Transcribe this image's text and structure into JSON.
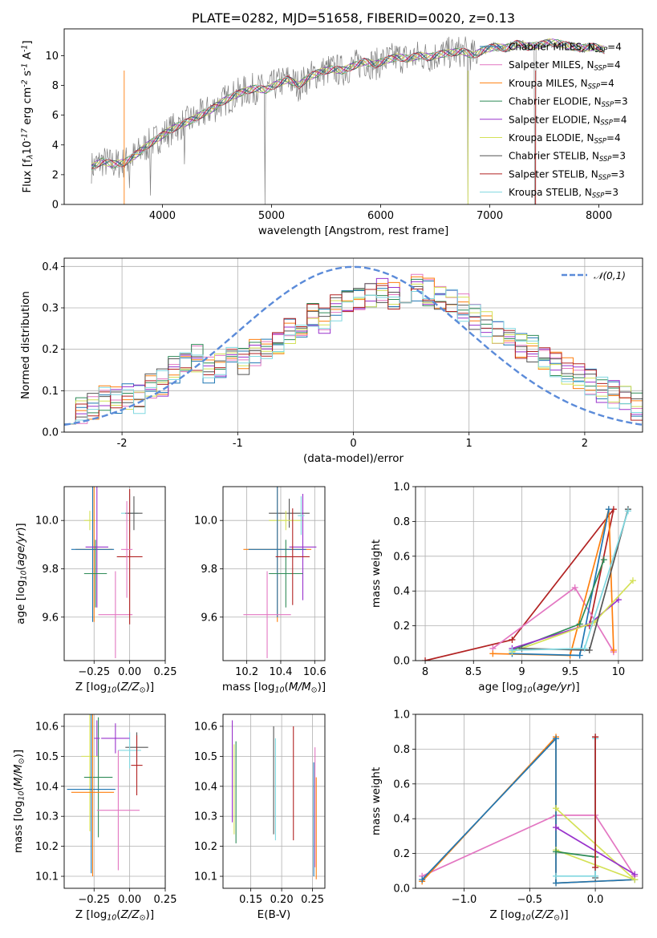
{
  "colors": {
    "Chabrier MILES": "#1f77b4",
    "Salpeter MILES": "#e377c2",
    "Kroupa MILES": "#ff7f0e",
    "Chabrier ELODIE": "#2e8b57",
    "Salpeter ELODIE": "#9932cc",
    "Kroupa ELODIE": "#d4e157",
    "Chabrier STELIB": "#555555",
    "Salpeter STELIB": "#b22222",
    "Kroupa STELIB": "#80d8e0"
  },
  "chart_data": [
    {
      "id": "spectrum",
      "type": "line",
      "title": "PLATE=0282, MJD=51658, FIBERID=0020, z=0.13",
      "xlabel": "wavelength [Angstrom, rest frame]",
      "ylabel": "Flux [f$_\\lambda$10$^{-17}$ erg cm$^{-2}$ s$^{-1}$ A$^{-1}$]",
      "xlim": [
        3100,
        8400
      ],
      "ylim": [
        0,
        11.8
      ],
      "xticks": [
        4000,
        5000,
        6000,
        7000,
        8000
      ],
      "yticks": [
        0,
        2,
        4,
        6,
        8,
        10
      ],
      "grid": false,
      "legend_position": "top-right",
      "data_spectrum_color": "#808080",
      "model_x": [
        3350,
        3450,
        3550,
        3650,
        3750,
        3850,
        3950,
        4050,
        4150,
        4250,
        4350,
        4450,
        4550,
        4650,
        4750,
        4850,
        4950,
        5050,
        5150,
        5250,
        5350,
        5450,
        5550,
        5650,
        5750,
        5850,
        5950,
        6050,
        6150,
        6250,
        6350,
        6450,
        6550,
        6650,
        6750,
        6850,
        6950,
        7050,
        7150,
        7250,
        7350,
        7450,
        7550,
        7650,
        7750,
        7850,
        7950,
        8050
      ],
      "model_y": [
        2.5,
        2.9,
        2.7,
        2.8,
        3.3,
        3.9,
        4.4,
        4.9,
        5.3,
        5.6,
        6.0,
        6.4,
        6.9,
        7.3,
        7.6,
        7.8,
        7.7,
        8.1,
        8.4,
        8.0,
        8.6,
        8.9,
        9.1,
        9.0,
        9.3,
        9.6,
        9.4,
        9.7,
        9.9,
        9.8,
        10.0,
        9.9,
        10.1,
        10.2,
        10.3,
        10.0,
        10.4,
        10.6,
        10.5,
        10.8,
        10.6,
        10.7,
        10.9,
        10.8,
        10.6,
        10.5,
        10.6,
        10.4
      ],
      "data_dips": [
        [
          3700,
          1.1
        ],
        [
          3890,
          0.6
        ],
        [
          4200,
          2.7
        ],
        [
          4940,
          0.0
        ],
        [
          6800,
          0.0
        ],
        [
          7415,
          0.0
        ]
      ],
      "series": [
        {
          "name": "Chabrier MILES, N$_{SSP}$=4"
        },
        {
          "name": "Salpeter MILES, N$_{SSP}$=4"
        },
        {
          "name": "Kroupa MILES, N$_{SSP}$=4"
        },
        {
          "name": "Chabrier ELODIE, N$_{SSP}$=3"
        },
        {
          "name": "Salpeter ELODIE, N$_{SSP}$=4"
        },
        {
          "name": "Kroupa ELODIE, N$_{SSP}$=4"
        },
        {
          "name": "Chabrier STELIB, N$_{SSP}$=3"
        },
        {
          "name": "Salpeter STELIB, N$_{SSP}$=3"
        },
        {
          "name": "Kroupa STELIB, N$_{SSP}$=3"
        }
      ]
    },
    {
      "id": "residuals",
      "type": "histogram",
      "xlabel": "(data-model)/error",
      "ylabel": "Normed distribution",
      "xlim": [
        -2.5,
        2.5
      ],
      "ylim": [
        0,
        0.42
      ],
      "xticks": [
        -2,
        -1,
        0,
        1,
        2
      ],
      "yticks": [
        0.0,
        0.1,
        0.2,
        0.3,
        0.4
      ],
      "grid": true,
      "legend": "$\\mathcal{N}(0,1)$",
      "legend_position": "top-right",
      "gaussian_color": "#5b8bd9",
      "bin_edges_start": -2.5,
      "bin_width": 0.1,
      "hist_values": [
        0.04,
        0.05,
        0.06,
        0.08,
        0.08,
        0.09,
        0.08,
        0.11,
        0.12,
        0.15,
        0.16,
        0.18,
        0.15,
        0.16,
        0.18,
        0.17,
        0.19,
        0.2,
        0.21,
        0.24,
        0.25,
        0.28,
        0.27,
        0.3,
        0.31,
        0.32,
        0.33,
        0.34,
        0.33,
        0.34,
        0.35,
        0.34,
        0.33,
        0.31,
        0.3,
        0.28,
        0.26,
        0.24,
        0.22,
        0.21,
        0.2,
        0.18,
        0.16,
        0.15,
        0.14,
        0.12,
        0.1,
        0.09,
        0.08,
        0.06
      ]
    },
    {
      "id": "age_vs_Z",
      "type": "errorbar",
      "xlabel": "Z [log$_{10}$($Z/Z_\\odot$)]",
      "ylabel": "age  [log$_{10}$($age/yr$)]",
      "xlim": [
        -0.46,
        0.25
      ],
      "ylim": [
        9.42,
        10.14
      ],
      "xticks": [
        -0.25,
        0.0,
        0.25
      ],
      "xtick_labels": [
        "−0.25",
        "0.00",
        "0.25"
      ],
      "yticks": [
        9.6,
        9.8,
        10.0
      ],
      "grid": true,
      "points": [
        {
          "x": -0.28,
          "y": 10.0,
          "xerr": 0.04,
          "yerr": 0.04,
          "c": "Kroupa ELODIE"
        },
        {
          "x": -0.25,
          "y": 9.88,
          "xerr": 0.13,
          "yerr": 0.3,
          "c": "Kroupa MILES"
        },
        {
          "x": -0.26,
          "y": 9.88,
          "xerr": 0.15,
          "yerr": 0.3,
          "c": "Chabrier MILES"
        },
        {
          "x": -0.23,
          "y": 9.89,
          "xerr": 0.08,
          "yerr": 0.25,
          "c": "Salpeter ELODIE"
        },
        {
          "x": -0.24,
          "y": 9.78,
          "xerr": 0.08,
          "yerr": 0.14,
          "c": "Chabrier ELODIE"
        },
        {
          "x": -0.1,
          "y": 9.61,
          "xerr": 0.12,
          "yerr": 0.18,
          "c": "Salpeter MILES"
        },
        {
          "x": 0.0,
          "y": 10.03,
          "xerr": 0.06,
          "yerr": 0.08,
          "c": "Kroupa STELIB"
        },
        {
          "x": 0.03,
          "y": 10.03,
          "xerr": 0.06,
          "yerr": 0.07,
          "c": "Chabrier STELIB"
        },
        {
          "x": 0.0,
          "y": 9.85,
          "xerr": 0.09,
          "yerr": 0.28,
          "c": "Salpeter STELIB"
        },
        {
          "x": -0.02,
          "y": 9.88,
          "xerr": 0.04,
          "yerr": 0.2,
          "c": "Salpeter MILES"
        }
      ]
    },
    {
      "id": "age_vs_mass",
      "type": "errorbar",
      "xlabel": "mass [log$_{10}$($M/M_\\odot$)]",
      "ylabel": "",
      "xlim": [
        10.06,
        10.66
      ],
      "ylim": [
        9.42,
        10.14
      ],
      "xticks": [
        10.2,
        10.4,
        10.6
      ],
      "yticks": [
        9.6,
        9.8,
        10.0
      ],
      "grid": true,
      "points": [
        {
          "x": 10.45,
          "y": 10.03,
          "xerr": 0.12,
          "yerr": 0.06,
          "c": "Chabrier STELIB"
        },
        {
          "x": 10.43,
          "y": 10.0,
          "xerr": 0.1,
          "yerr": 0.04,
          "c": "Kroupa ELODIE"
        },
        {
          "x": 10.38,
          "y": 9.88,
          "xerr": 0.2,
          "yerr": 0.3,
          "c": "Kroupa MILES"
        },
        {
          "x": 10.38,
          "y": 9.88,
          "xerr": 0.17,
          "yerr": 0.28,
          "c": "Chabrier MILES"
        },
        {
          "x": 10.53,
          "y": 9.89,
          "xerr": 0.08,
          "yerr": 0.22,
          "c": "Salpeter ELODIE"
        },
        {
          "x": 10.43,
          "y": 9.78,
          "xerr": 0.1,
          "yerr": 0.14,
          "c": "Chabrier ELODIE"
        },
        {
          "x": 10.47,
          "y": 9.85,
          "xerr": 0.1,
          "yerr": 0.2,
          "c": "Salpeter STELIB"
        },
        {
          "x": 10.32,
          "y": 9.61,
          "xerr": 0.14,
          "yerr": 0.18,
          "c": "Salpeter MILES"
        },
        {
          "x": 10.52,
          "y": 10.02,
          "xerr": 0.02,
          "yerr": 0.08,
          "c": "Kroupa STELIB"
        }
      ]
    },
    {
      "id": "weight_vs_age",
      "type": "line",
      "xlabel": "age  [log$_{10}$($age/yr$)]",
      "ylabel": "mass weight",
      "xlim": [
        7.9,
        10.25
      ],
      "ylim": [
        0,
        1.0
      ],
      "xticks": [
        8.0,
        8.5,
        9.0,
        9.5,
        10.0
      ],
      "yticks": [
        0.0,
        0.2,
        0.4,
        0.6,
        0.8,
        1.0
      ],
      "grid": true,
      "series": [
        {
          "c": "Salpeter STELIB",
          "x": [
            8.0,
            8.9,
            9.95,
            9.7
          ],
          "y": [
            0.0,
            0.12,
            0.87,
            0.2
          ]
        },
        {
          "c": "Salpeter MILES",
          "x": [
            8.7,
            9.55,
            9.95,
            9.95
          ],
          "y": [
            0.07,
            0.42,
            0.05,
            0.05
          ]
        },
        {
          "c": "Kroupa MILES",
          "x": [
            8.7,
            9.5,
            9.9,
            9.95
          ],
          "y": [
            0.04,
            0.03,
            0.87,
            0.06
          ]
        },
        {
          "c": "Chabrier MILES",
          "x": [
            8.9,
            9.6,
            9.9
          ],
          "y": [
            0.04,
            0.03,
            0.87
          ]
        },
        {
          "c": "Chabrier ELODIE",
          "x": [
            8.9,
            9.6,
            9.85
          ],
          "y": [
            0.06,
            0.21,
            0.58
          ]
        },
        {
          "c": "Salpeter ELODIE",
          "x": [
            8.9,
            9.7,
            10.0
          ],
          "y": [
            0.07,
            0.21,
            0.35
          ]
        },
        {
          "c": "Kroupa ELODIE",
          "x": [
            8.9,
            9.75,
            10.15
          ],
          "y": [
            0.05,
            0.22,
            0.46
          ]
        },
        {
          "c": "Chabrier STELIB",
          "x": [
            9.0,
            9.7,
            10.1
          ],
          "y": [
            0.07,
            0.06,
            0.87
          ]
        },
        {
          "c": "Kroupa STELIB",
          "x": [
            8.9,
            9.65,
            10.1
          ],
          "y": [
            0.06,
            0.07,
            0.86
          ]
        }
      ]
    },
    {
      "id": "mass_vs_Z",
      "type": "errorbar",
      "xlabel": "Z [log$_{10}$($Z/Z_\\odot$)]",
      "ylabel": "mass [log$_{10}$($M/M_\\odot$)]",
      "xlim": [
        -0.46,
        0.25
      ],
      "ylim": [
        10.06,
        10.64
      ],
      "xticks": [
        -0.25,
        0.0,
        0.25
      ],
      "xtick_labels": [
        "−0.25",
        "0.00",
        "0.25"
      ],
      "yticks": [
        10.1,
        10.2,
        10.3,
        10.4,
        10.5,
        10.6
      ],
      "grid": true,
      "points": [
        {
          "x": 0.05,
          "y": 10.53,
          "xerr": 0.08,
          "yerr": 0.05,
          "c": "Chabrier STELIB"
        },
        {
          "x": 0.0,
          "y": 10.52,
          "xerr": 0.08,
          "yerr": 0.06,
          "c": "Kroupa STELIB"
        },
        {
          "x": -0.1,
          "y": 10.56,
          "xerr": 0.1,
          "yerr": 0.05,
          "c": "Salpeter ELODIE"
        },
        {
          "x": -0.28,
          "y": 10.5,
          "xerr": 0.06,
          "yerr": 0.25,
          "c": "Kroupa ELODIE"
        },
        {
          "x": 0.05,
          "y": 10.47,
          "xerr": 0.04,
          "yerr": 0.1,
          "c": "Salpeter STELIB"
        },
        {
          "x": -0.22,
          "y": 10.43,
          "xerr": 0.1,
          "yerr": 0.2,
          "c": "Chabrier ELODIE"
        },
        {
          "x": -0.27,
          "y": 10.39,
          "xerr": 0.17,
          "yerr": 0.28,
          "c": "Chabrier MILES"
        },
        {
          "x": -0.26,
          "y": 10.38,
          "xerr": 0.15,
          "yerr": 0.28,
          "c": "Kroupa MILES"
        },
        {
          "x": -0.08,
          "y": 10.32,
          "xerr": 0.15,
          "yerr": 0.2,
          "c": "Salpeter MILES"
        },
        {
          "x": -0.23,
          "y": 10.56,
          "xerr": 0.02,
          "yerr": 0.06,
          "c": "Salpeter ELODIE"
        }
      ]
    },
    {
      "id": "mass_vs_EBV",
      "type": "errorbar",
      "xlabel": "E(B-V)",
      "ylabel": "",
      "xlim": [
        0.105,
        0.27
      ],
      "ylim": [
        10.06,
        10.64
      ],
      "xticks": [
        0.15,
        0.2,
        0.25
      ],
      "xtick_labels": [
        "0.15",
        "0.20",
        "0.25"
      ],
      "yticks": [
        10.1,
        10.2,
        10.3,
        10.4,
        10.5,
        10.6
      ],
      "grid": true,
      "points": [
        {
          "x": 0.12,
          "y": 10.45,
          "yerr": 0.17,
          "c": "Salpeter ELODIE"
        },
        {
          "x": 0.123,
          "y": 10.39,
          "yerr": 0.15,
          "c": "Kroupa ELODIE"
        },
        {
          "x": 0.126,
          "y": 10.38,
          "yerr": 0.17,
          "c": "Chabrier ELODIE"
        },
        {
          "x": 0.187,
          "y": 10.42,
          "yerr": 0.18,
          "c": "Chabrier STELIB"
        },
        {
          "x": 0.19,
          "y": 10.39,
          "yerr": 0.17,
          "c": "Kroupa STELIB"
        },
        {
          "x": 0.219,
          "y": 10.41,
          "yerr": 0.19,
          "c": "Salpeter STELIB"
        },
        {
          "x": 0.252,
          "y": 10.29,
          "yerr": 0.19,
          "c": "Chabrier MILES"
        },
        {
          "x": 0.254,
          "y": 10.33,
          "yerr": 0.2,
          "c": "Salpeter MILES"
        },
        {
          "x": 0.256,
          "y": 10.26,
          "yerr": 0.17,
          "c": "Kroupa MILES"
        }
      ]
    },
    {
      "id": "weight_vs_Z",
      "type": "line",
      "xlabel": "Z [log$_{10}$($Z/Z_\\odot$)]",
      "ylabel": "mass weight",
      "xlim": [
        -1.37,
        0.36
      ],
      "ylim": [
        0,
        1.0
      ],
      "xticks": [
        -1.0,
        -0.5,
        0.0
      ],
      "xtick_labels": [
        "−1.0",
        "−0.5",
        "0.0"
      ],
      "yticks": [
        0.0,
        0.2,
        0.4,
        0.6,
        0.8,
        1.0
      ],
      "grid": true,
      "series": [
        {
          "c": "Salpeter MILES",
          "x": [
            -1.32,
            -0.3,
            0.0,
            0.3
          ],
          "y": [
            0.07,
            0.42,
            0.42,
            0.07
          ]
        },
        {
          "c": "Kroupa MILES",
          "x": [
            -1.32,
            -0.3,
            -0.3,
            0.3
          ],
          "y": [
            0.04,
            0.87,
            0.03,
            0.05
          ]
        },
        {
          "c": "Chabrier MILES",
          "x": [
            -1.32,
            -0.3,
            -0.3,
            0.3
          ],
          "y": [
            0.05,
            0.86,
            0.03,
            0.05
          ]
        },
        {
          "c": "Kroupa ELODIE",
          "x": [
            -0.3,
            0.3,
            -0.3
          ],
          "y": [
            0.46,
            0.05,
            0.22
          ]
        },
        {
          "c": "Salpeter ELODIE",
          "x": [
            -0.3,
            0.3
          ],
          "y": [
            0.35,
            0.08
          ]
        },
        {
          "c": "Chabrier ELODIE",
          "x": [
            -0.3,
            0.0
          ],
          "y": [
            0.21,
            0.18
          ]
        },
        {
          "c": "Chabrier STELIB",
          "x": [
            0.0,
            0.0
          ],
          "y": [
            0.87,
            0.06
          ]
        },
        {
          "c": "Kroupa STELIB",
          "x": [
            -0.3,
            0.0,
            0.0
          ],
          "y": [
            0.07,
            0.07,
            0.86
          ]
        },
        {
          "c": "Salpeter STELIB",
          "x": [
            0.0,
            0.0
          ],
          "y": [
            0.87,
            0.12
          ]
        }
      ]
    }
  ]
}
